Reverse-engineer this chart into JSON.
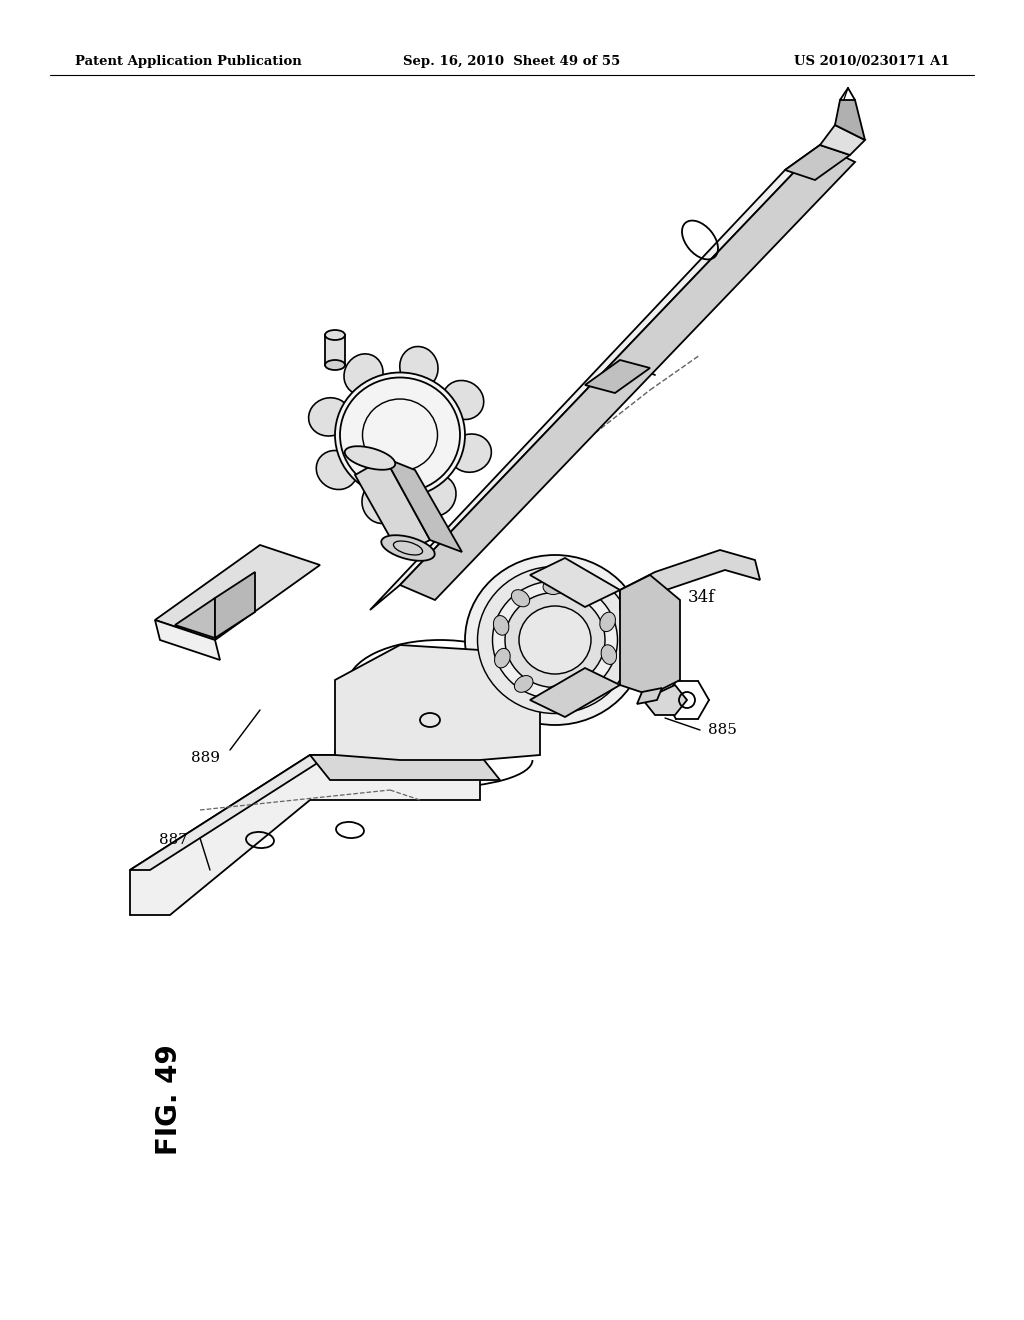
{
  "bg_color": "#ffffff",
  "header_left": "Patent Application Publication",
  "header_mid": "Sep. 16, 2010  Sheet 49 of 55",
  "header_right": "US 2010/0230171 A1",
  "fig_label": "FIG. 49",
  "line_color": "#000000",
  "line_width": 1.3,
  "dashed_color": "#666666",
  "gray_fill": "#d8d8d8",
  "light_gray": "#e8e8e8",
  "mid_gray": "#bbbbbb"
}
